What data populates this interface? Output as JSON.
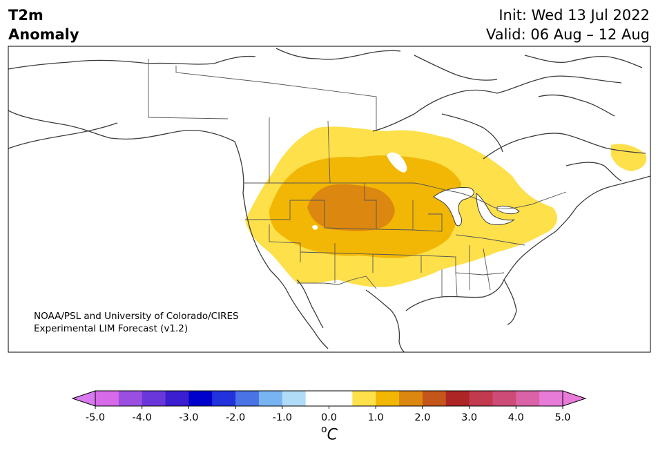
{
  "header": {
    "title_line1": "T2m",
    "title_line2": "Anomaly",
    "init": "Init: Wed 13 Jul 2022",
    "valid": "Valid: 06 Aug – 12 Aug"
  },
  "credit": {
    "line1": "NOAA/PSL and University of Colorado/CIRES",
    "line2": "Experimental LIM Forecast (v1.2)"
  },
  "colorbar": {
    "unit_base": "C",
    "unit_super": "o",
    "ticks": [
      "-5.0",
      "-4.0",
      "-3.0",
      "-2.0",
      "-1.0",
      "0.0",
      "1.0",
      "2.0",
      "3.0",
      "4.0",
      "5.0"
    ],
    "colors": [
      "#d66ae8",
      "#9b4fe0",
      "#6a37db",
      "#3a1ecf",
      "#0000cc",
      "#2233dd",
      "#4a74e6",
      "#78b4f2",
      "#b0dcf8",
      "#ffffff",
      "#ffffff",
      "#fde04a",
      "#f2b705",
      "#dc870f",
      "#c4561a",
      "#ad2525",
      "#c13a4e",
      "#cc4c77",
      "#da62a6",
      "#e87ad8"
    ],
    "under_color": "#d97af0",
    "over_color": "#e87ad8"
  },
  "map": {
    "anomaly_levels": [
      "0.5-1.0",
      "1.0-1.5",
      "1.5-2.0"
    ],
    "fill_colors": [
      "#fde04a",
      "#f2b705",
      "#dc870f"
    ]
  }
}
